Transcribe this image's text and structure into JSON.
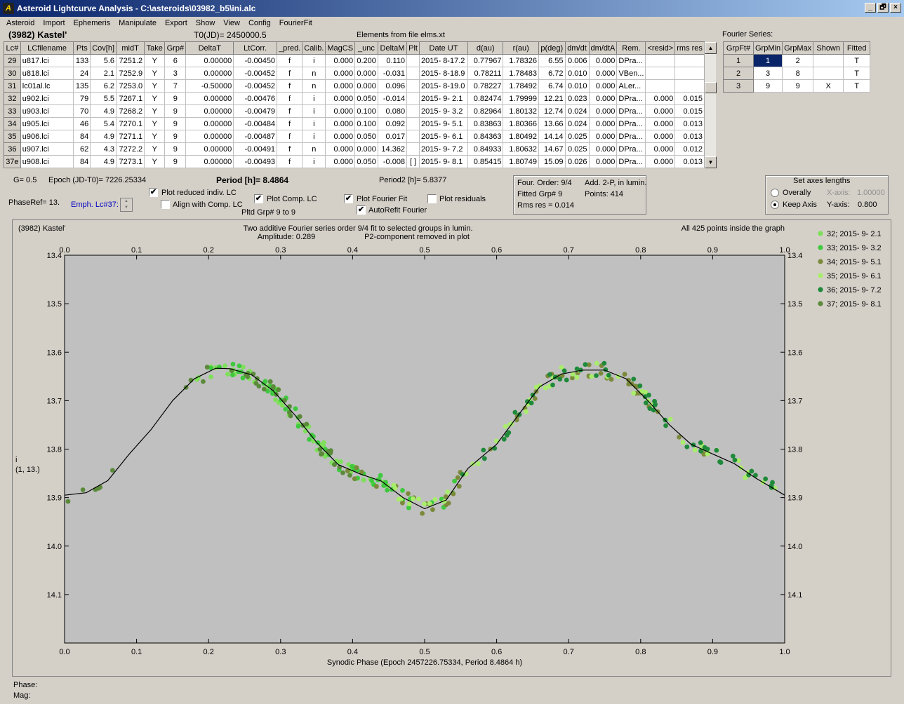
{
  "window": {
    "title": "Asteroid Lightcurve Analysis - C:\\asteroids\\03982_b5\\ini.alc",
    "icon": "app-logo-icon",
    "buttons": [
      "_",
      "🗗",
      "×"
    ]
  },
  "menu": [
    "Asteroid",
    "Import",
    "Ephemeris",
    "Manipulate",
    "Export",
    "Show",
    "View",
    "Config",
    "FourierFit"
  ],
  "header": {
    "name": "(3982) Kastel'",
    "t0": "T0(JD)= 2450000.5",
    "elements": "Elements from file elms.xt"
  },
  "lc_table": {
    "columns": [
      "Lc#",
      "LCfilename",
      "Pts",
      "Cov[h]",
      "midT",
      "Take",
      "Grp#",
      "DeltaT",
      "LtCorr.",
      "_pred.",
      "Calib.",
      "MagCS",
      "_unc",
      "DeltaM",
      "Plt",
      "Date UT",
      "d(au)",
      "r(au)",
      "p(deg)",
      "dm/dt",
      "dm/dtA",
      "Rem.",
      "<resid>",
      "rms res"
    ],
    "rows": [
      [
        "29",
        "u817.lci",
        "133",
        "5.6",
        "7251.2",
        "Y",
        "6",
        "0.00000",
        "-0.00450",
        "f",
        "i",
        "0.000",
        "0.200",
        "0.110",
        "",
        "2015- 8-17.2",
        "0.77967",
        "1.78326",
        "6.55",
        "0.006",
        "0.000",
        "DPra...",
        "",
        ""
      ],
      [
        "30",
        "u818.lci",
        "24",
        "2.1",
        "7252.9",
        "Y",
        "3",
        "0.00000",
        "-0.00452",
        "f",
        "n",
        "0.000",
        "0.000",
        "-0.031",
        "",
        "2015- 8-18.9",
        "0.78211",
        "1.78483",
        "6.72",
        "0.010",
        "0.000",
        "VBen...",
        "",
        ""
      ],
      [
        "31",
        "lc01al.lc",
        "135",
        "6.2",
        "7253.0",
        "Y",
        "7",
        "-0.50000",
        "-0.00452",
        "f",
        "n",
        "0.000",
        "0.000",
        "0.096",
        "",
        "2015- 8-19.0",
        "0.78227",
        "1.78492",
        "6.74",
        "0.010",
        "0.000",
        "ALer...",
        "",
        ""
      ],
      [
        "32",
        "u902.lci",
        "79",
        "5.5",
        "7267.1",
        "Y",
        "9",
        "0.00000",
        "-0.00476",
        "f",
        "i",
        "0.000",
        "0.050",
        "-0.014",
        "",
        "2015- 9- 2.1",
        "0.82474",
        "1.79999",
        "12.21",
        "0.023",
        "0.000",
        "DPra...",
        "0.000",
        "0.015"
      ],
      [
        "33",
        "u903.lci",
        "70",
        "4.9",
        "7268.2",
        "Y",
        "9",
        "0.00000",
        "-0.00479",
        "f",
        "i",
        "0.000",
        "0.100",
        "0.080",
        "",
        "2015- 9- 3.2",
        "0.82964",
        "1.80132",
        "12.74",
        "0.024",
        "0.000",
        "DPra...",
        "0.000",
        "0.015"
      ],
      [
        "34",
        "u905.lci",
        "46",
        "5.4",
        "7270.1",
        "Y",
        "9",
        "0.00000",
        "-0.00484",
        "f",
        "i",
        "0.000",
        "0.100",
        "0.092",
        "",
        "2015- 9- 5.1",
        "0.83863",
        "1.80366",
        "13.66",
        "0.024",
        "0.000",
        "DPra...",
        "0.000",
        "0.013"
      ],
      [
        "35",
        "u906.lci",
        "84",
        "4.9",
        "7271.1",
        "Y",
        "9",
        "0.00000",
        "-0.00487",
        "f",
        "i",
        "0.000",
        "0.050",
        "0.017",
        "",
        "2015- 9- 6.1",
        "0.84363",
        "1.80492",
        "14.14",
        "0.025",
        "0.000",
        "DPra...",
        "0.000",
        "0.013"
      ],
      [
        "36",
        "u907.lci",
        "62",
        "4.3",
        "7272.2",
        "Y",
        "9",
        "0.00000",
        "-0.00491",
        "f",
        "n",
        "0.000",
        "0.000",
        "14.362",
        "",
        "2015- 9- 7.2",
        "0.84933",
        "1.80632",
        "14.67",
        "0.025",
        "0.000",
        "DPra...",
        "0.000",
        "0.012"
      ],
      [
        "37e",
        "u908.lci",
        "84",
        "4.9",
        "7273.1",
        "Y",
        "9",
        "0.00000",
        "-0.00493",
        "f",
        "i",
        "0.000",
        "0.050",
        "-0.008",
        "[ ]",
        "2015- 9- 8.1",
        "0.85415",
        "1.80749",
        "15.09",
        "0.026",
        "0.000",
        "DPra...",
        "0.000",
        "0.013"
      ]
    ]
  },
  "fourier_series": {
    "title": "Fourier Series:",
    "columns": [
      "GrpFt#",
      "GrpMin",
      "GrpMax",
      "Shown",
      "Fitted"
    ],
    "rows": [
      [
        "1",
        "1",
        "2",
        "",
        "T"
      ],
      [
        "2",
        "3",
        "8",
        "",
        "T"
      ],
      [
        "3",
        "9",
        "9",
        "X",
        "T"
      ]
    ]
  },
  "controls": {
    "g": "G= 0.5",
    "epoch": "Epoch (JD-T0)= 7226.25334",
    "period": "Period [h]= 8.4864",
    "period2": "Period2 [h]= 5.8377",
    "phaseref": "PhaseRef= 13.",
    "emph": "Emph. Lc#37:",
    "plot_reduced": "Plot reduced indiv. LC",
    "align": "Align with Comp. LC",
    "plot_comp": "Plot Comp. LC",
    "pltd_grp": "Pltd Grp#  9  to  9",
    "plot_fourier": "Plot Fourier Fit",
    "autorefit": "AutoRefit Fourier",
    "plot_residuals": "Plot residuals",
    "check_mark": "✔"
  },
  "info": {
    "order": "Four. Order:  9/4",
    "add": "Add. 2-P, in lumin.",
    "fitted": "Fitted Grp# 9",
    "points": "Points: 414",
    "rms": "Rms res    = 0.014"
  },
  "axes_box": {
    "title": "Set axes lengths",
    "overall": "Overally",
    "keep": "Keep Axis",
    "xaxis_label": "X-axis:",
    "xaxis_value": "1.00000",
    "yaxis_label": "Y-axis:",
    "yaxis_value": "0.800"
  },
  "footer": {
    "phase": "Phase:",
    "mag": "Mag:"
  },
  "chart_data": {
    "type": "scatter",
    "title_left": "(3982) Kastel'",
    "title": "Two additive Fourier series order 9/4 fit to selected groups in lumin.",
    "amplitude": "Amplitude: 0.289",
    "p2note": "P2-component removed in plot",
    "inside_note": "All 425 points inside the graph",
    "xlabel": "Synodic Phase (Epoch 2457226.75334, Period 8.4864 h)",
    "ylabel": "i",
    "ylabel2": "(1, 13.)",
    "xlim": [
      0,
      1
    ],
    "ylim": [
      13.4,
      14.2
    ],
    "y_inverted": true,
    "xticks": [
      "0.0",
      "0.1",
      "0.2",
      "0.3",
      "0.4",
      "0.5",
      "0.6",
      "0.7",
      "0.8",
      "0.9",
      "1.0"
    ],
    "yticks": [
      "13.4",
      "13.5",
      "13.6",
      "13.7",
      "13.8",
      "13.9",
      "14.0",
      "14.1"
    ],
    "legend": [
      {
        "name": "32; 2015- 9- 2.1",
        "color": "#7ee05a"
      },
      {
        "name": "33; 2015- 9- 3.2",
        "color": "#3ec93e"
      },
      {
        "name": "34; 2015- 9- 5.1",
        "color": "#7a8a3a"
      },
      {
        "name": "35; 2015- 9- 6.1",
        "color": "#a8ee6a"
      },
      {
        "name": "36; 2015- 9- 7.2",
        "color": "#1f8a3a"
      },
      {
        "name": "37; 2015- 9- 8.1",
        "color": "#5a8a3a"
      }
    ],
    "fit_curve": [
      [
        0.0,
        13.895
      ],
      [
        0.03,
        13.89
      ],
      [
        0.06,
        13.865
      ],
      [
        0.09,
        13.81
      ],
      [
        0.12,
        13.76
      ],
      [
        0.15,
        13.7
      ],
      [
        0.18,
        13.655
      ],
      [
        0.21,
        13.633
      ],
      [
        0.23,
        13.634
      ],
      [
        0.26,
        13.647
      ],
      [
        0.29,
        13.68
      ],
      [
        0.32,
        13.73
      ],
      [
        0.35,
        13.786
      ],
      [
        0.38,
        13.832
      ],
      [
        0.41,
        13.851
      ],
      [
        0.44,
        13.866
      ],
      [
        0.47,
        13.9
      ],
      [
        0.5,
        13.923
      ],
      [
        0.53,
        13.905
      ],
      [
        0.56,
        13.84
      ],
      [
        0.6,
        13.79
      ],
      [
        0.63,
        13.73
      ],
      [
        0.66,
        13.671
      ],
      [
        0.69,
        13.645
      ],
      [
        0.72,
        13.637
      ],
      [
        0.75,
        13.637
      ],
      [
        0.78,
        13.655
      ],
      [
        0.81,
        13.7
      ],
      [
        0.84,
        13.75
      ],
      [
        0.87,
        13.79
      ],
      [
        0.9,
        13.81
      ],
      [
        0.93,
        13.83
      ],
      [
        0.96,
        13.86
      ],
      [
        1.0,
        13.895
      ]
    ]
  }
}
